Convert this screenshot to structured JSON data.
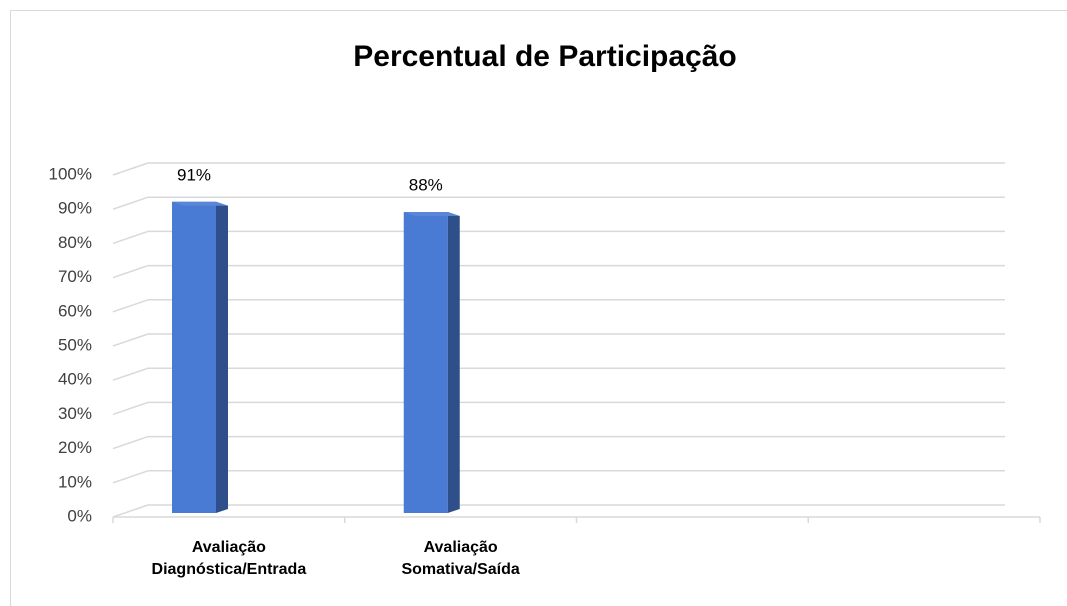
{
  "chart_data": {
    "type": "bar3d",
    "title": "Percentual de Participação",
    "categories": [
      "Avaliação Diagnóstica/Entrada",
      "Avaliação Somativa/Saída",
      null,
      null
    ],
    "values": [
      91,
      88,
      null,
      null
    ],
    "value_labels": [
      "91%",
      "88%",
      null,
      null
    ],
    "color": "#4a7bd4",
    "ylim": [
      0,
      100
    ],
    "yticks": [
      {
        "value": 0,
        "label": "0%"
      },
      {
        "value": 10,
        "label": "10%"
      },
      {
        "value": 20,
        "label": "20%"
      },
      {
        "value": 30,
        "label": "30%"
      },
      {
        "value": 40,
        "label": "40%"
      },
      {
        "value": 50,
        "label": "50%"
      },
      {
        "value": 60,
        "label": "60%"
      },
      {
        "value": 70,
        "label": "70%"
      },
      {
        "value": 80,
        "label": "80%"
      },
      {
        "value": 90,
        "label": "90%"
      },
      {
        "value": 100,
        "label": "100%"
      }
    ],
    "grid": true
  }
}
